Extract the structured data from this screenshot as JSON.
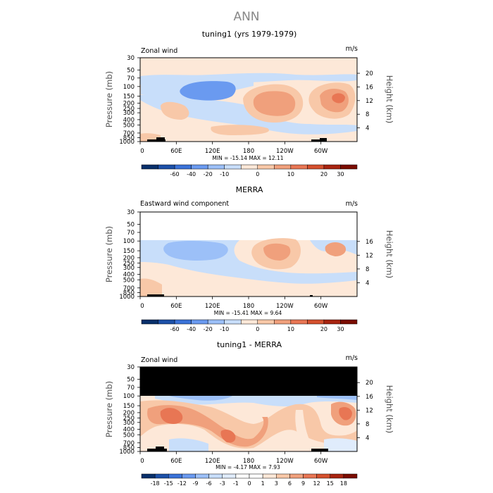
{
  "main_title": "ANN",
  "panels": [
    {
      "title": "tuning1 (yrs 1979-1979)",
      "variable": "Zonal wind",
      "units": "m/s",
      "stats": "MIN = -15.14   MAX =  12.11",
      "ylabel_left": "Pressure (mb)",
      "ylabel_right": "Height (km)",
      "pressure_ticks": [
        "30",
        "50",
        "70",
        "100",
        "150",
        "200",
        "250",
        "300",
        "400",
        "500",
        "700",
        "850",
        "1000"
      ],
      "height_ticks": [
        "20",
        "16",
        "12",
        "8",
        "4"
      ],
      "lon_ticks": [
        "0",
        "60E",
        "120E",
        "180",
        "120W",
        "60W"
      ],
      "colorbar_labels": [
        "-60",
        "-40",
        "-20",
        "-10",
        "0",
        "10",
        "20",
        "30"
      ]
    },
    {
      "title": "MERRA",
      "variable": "Eastward wind component",
      "units": "m/s",
      "stats": "MIN = -15.41   MAX =   9.64",
      "ylabel_left": "Pressure (mb)",
      "ylabel_right": "Height (km)",
      "pressure_ticks": [
        "30",
        "50",
        "70",
        "100",
        "150",
        "200",
        "250",
        "300",
        "400",
        "500",
        "700",
        "850",
        "1000"
      ],
      "height_ticks": [
        "16",
        "12",
        "8",
        "4"
      ],
      "lon_ticks": [
        "0",
        "60E",
        "120E",
        "180",
        "120W",
        "60W"
      ],
      "colorbar_labels": [
        "-60",
        "-40",
        "-20",
        "-10",
        "0",
        "10",
        "20",
        "30"
      ]
    },
    {
      "title": "tuning1 - MERRA",
      "variable": "Zonal wind",
      "units": "m/s",
      "stats": "MIN =  -4.17   MAX =   7.93",
      "ylabel_left": "Pressure (mb)",
      "ylabel_right": "Height (km)",
      "pressure_ticks": [
        "30",
        "50",
        "70",
        "100",
        "150",
        "200",
        "250",
        "300",
        "400",
        "500",
        "700",
        "850",
        "1000"
      ],
      "height_ticks": [
        "20",
        "16",
        "12",
        "8",
        "4"
      ],
      "lon_ticks": [
        "0",
        "60E",
        "120E",
        "180",
        "120W",
        "60W"
      ],
      "colorbar_labels": [
        "-18",
        "-15",
        "-12",
        "-9",
        "-6",
        "-3",
        "-1",
        "0",
        "1",
        "3",
        "6",
        "9",
        "12",
        "15",
        "18"
      ]
    }
  ],
  "colors": {
    "cb_main": [
      "#08306b",
      "#1c50a8",
      "#3a72d8",
      "#6a9af0",
      "#9cc0f8",
      "#c8defa",
      "#fde8d8",
      "#f8c8a8",
      "#f0a07c",
      "#e87654",
      "#d4502e",
      "#a82410",
      "#7a0c00"
    ],
    "cb_diff": [
      "#08306b",
      "#1c50a8",
      "#3a72d8",
      "#6a9af0",
      "#9cc0f8",
      "#c8defa",
      "#e0ecfc",
      "#ffffff",
      "#ffffff",
      "#fde8d8",
      "#f8c8a8",
      "#f0a07c",
      "#e87654",
      "#d4502e",
      "#a82410",
      "#7a0c00"
    ],
    "masked": "#000000"
  },
  "chart_data": [
    {
      "type": "heatmap",
      "title": "tuning1 (yrs 1979-1979)",
      "variable": "Zonal wind",
      "units": "m/s",
      "x": "longitude 0-360",
      "y": "pressure (mb), log scale",
      "ylim": [
        1000,
        30
      ],
      "min": -15.14,
      "max": 12.11,
      "contour_levels": [
        -60,
        -40,
        -20,
        -10,
        0,
        10,
        20,
        30
      ],
      "features": [
        {
          "region": "120E-180, 100-200 mb",
          "sign": "negative",
          "peak": -15.14
        },
        {
          "region": "180-120W, 150-250 mb",
          "sign": "positive",
          "peak": 10
        },
        {
          "region": "60W-30W, 150-200 mb",
          "sign": "positive",
          "peak": 12.11
        },
        {
          "region": "30E-60E, 250-400 mb",
          "sign": "positive",
          "peak": 6
        }
      ]
    },
    {
      "type": "heatmap",
      "title": "MERRA",
      "variable": "Eastward wind component",
      "units": "m/s",
      "x": "longitude 0-360",
      "y": "pressure (mb), log scale",
      "ylim": [
        1000,
        30
      ],
      "data_top_mb": 100,
      "min": -15.41,
      "max": 9.64,
      "contour_levels": [
        -60,
        -40,
        -20,
        -10,
        0,
        10,
        20,
        30
      ],
      "features": [
        {
          "region": "60E-150E, 150-250 mb",
          "sign": "negative",
          "peak": -15.41
        },
        {
          "region": "180-120W, 100-300 mb",
          "sign": "positive",
          "peak": 9.64
        },
        {
          "region": "60W-30W, 150-200 mb",
          "sign": "positive",
          "peak": 8
        }
      ]
    },
    {
      "type": "heatmap",
      "title": "tuning1 - MERRA",
      "variable": "Zonal wind",
      "units": "m/s",
      "x": "longitude 0-360",
      "y": "pressure (mb), log scale",
      "ylim": [
        1000,
        30
      ],
      "masked_above_mb": 100,
      "min": -4.17,
      "max": 7.93,
      "contour_levels": [
        -18,
        -15,
        -12,
        -9,
        -6,
        -3,
        -1,
        0,
        1,
        3,
        6,
        9,
        12,
        15,
        18
      ],
      "features": [
        {
          "region": "0-150E, 150-700 mb",
          "sign": "positive",
          "peak": 6
        },
        {
          "region": "150E-180, 400-700 mb",
          "sign": "positive",
          "peak": 7.93
        },
        {
          "region": "30E-90E, 100-150 mb",
          "sign": "negative",
          "peak": -4.17
        },
        {
          "region": "60W-30W, 150-400 mb",
          "sign": "positive",
          "peak": 6
        }
      ]
    }
  ]
}
